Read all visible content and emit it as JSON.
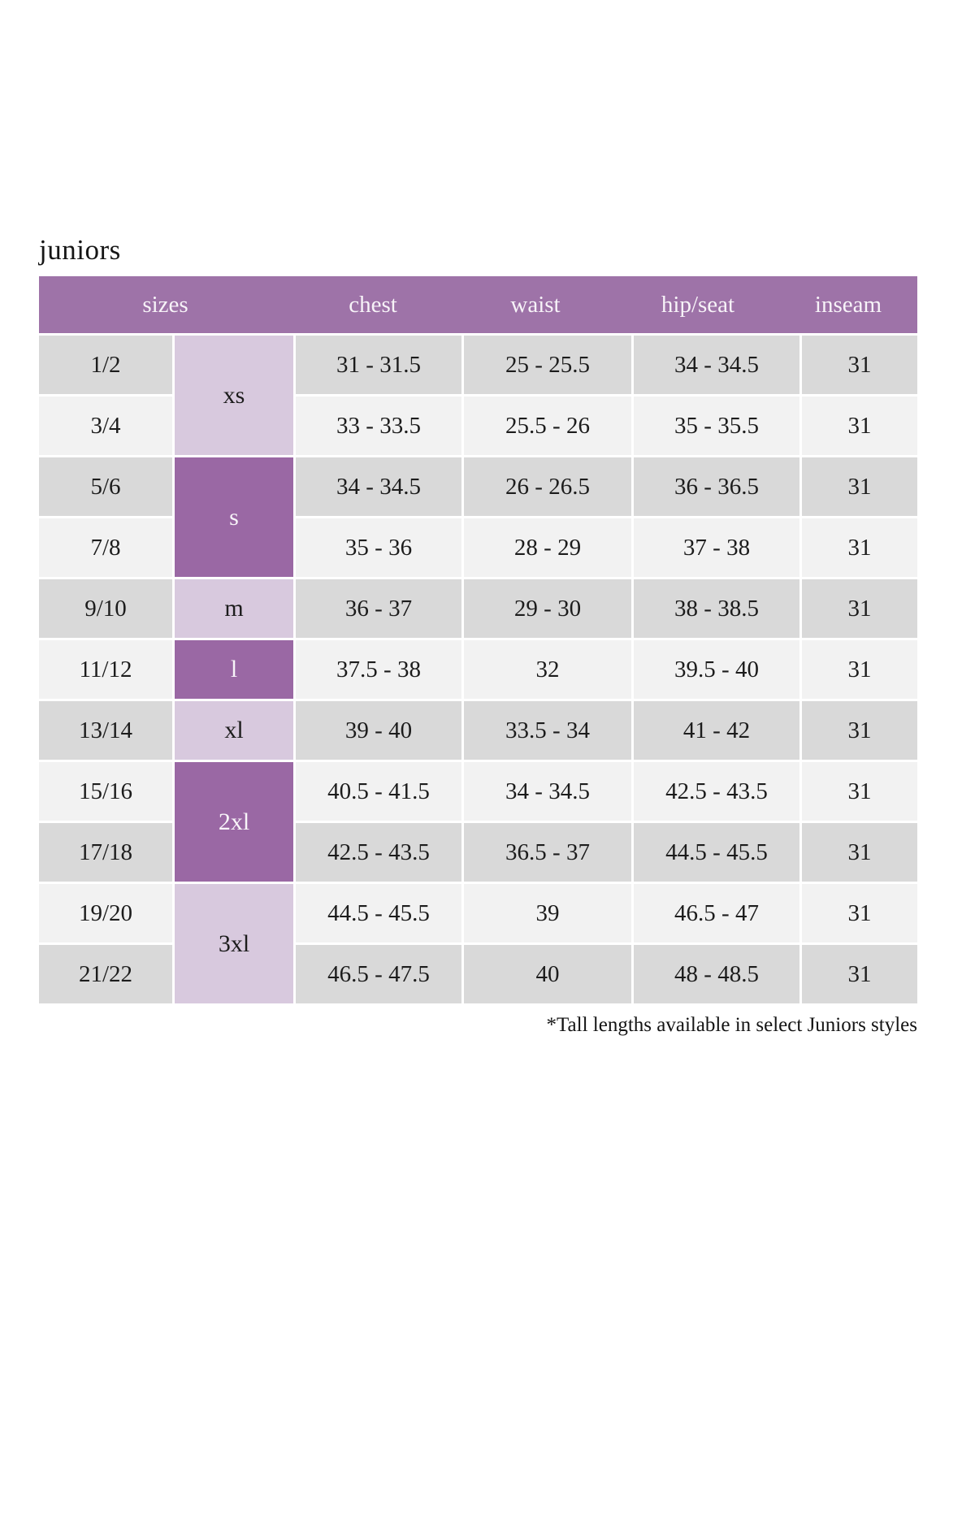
{
  "title": "juniors",
  "colors": {
    "header_purple": "#9e73a8",
    "dark_purple": "#9a68a4",
    "light_lavender": "#d8c9de",
    "row_gray": "#d9d9d9",
    "row_light": "#f2f2f2",
    "header_text": "#f7f3f8",
    "body_text": "#1c1c1c"
  },
  "table": {
    "columns": [
      "sizes",
      "chest",
      "waist",
      "hip/seat",
      "inseam"
    ],
    "rows": [
      {
        "size": "1/2",
        "letter": "xs",
        "chest": "31 - 31.5",
        "waist": "25 - 25.5",
        "hip_seat": "34 - 34.5",
        "inseam": "31"
      },
      {
        "size": "3/4",
        "chest": "33 - 33.5",
        "waist": "25.5 - 26",
        "hip_seat": "35 - 35.5",
        "inseam": "31"
      },
      {
        "size": "5/6",
        "letter": "s",
        "chest": "34 - 34.5",
        "waist": "26 - 26.5",
        "hip_seat": "36 - 36.5",
        "inseam": "31"
      },
      {
        "size": "7/8",
        "chest": "35 - 36",
        "waist": "28 - 29",
        "hip_seat": "37 - 38",
        "inseam": "31"
      },
      {
        "size": "9/10",
        "letter": "m",
        "chest": "36 - 37",
        "waist": "29 - 30",
        "hip_seat": "38 - 38.5",
        "inseam": "31"
      },
      {
        "size": "11/12",
        "letter": "l",
        "chest": "37.5 - 38",
        "waist": "32",
        "hip_seat": "39.5 - 40",
        "inseam": "31"
      },
      {
        "size": "13/14",
        "letter": "xl",
        "chest": "39 - 40",
        "waist": "33.5 - 34",
        "hip_seat": "41 - 42",
        "inseam": "31"
      },
      {
        "size": "15/16",
        "letter": "2xl",
        "chest": "40.5 - 41.5",
        "waist": "34 - 34.5",
        "hip_seat": "42.5 - 43.5",
        "inseam": "31"
      },
      {
        "size": "17/18",
        "chest": "42.5 - 43.5",
        "waist": "36.5 - 37",
        "hip_seat": "44.5 - 45.5",
        "inseam": "31"
      },
      {
        "size": "19/20",
        "letter": "3xl",
        "chest": "44.5 - 45.5",
        "waist": "39",
        "hip_seat": "46.5 - 47",
        "inseam": "31"
      },
      {
        "size": "21/22",
        "chest": "46.5 - 47.5",
        "waist": "40",
        "hip_seat": "48 - 48.5",
        "inseam": "31"
      }
    ]
  },
  "footnote": "*Tall lengths available in select Juniors styles"
}
